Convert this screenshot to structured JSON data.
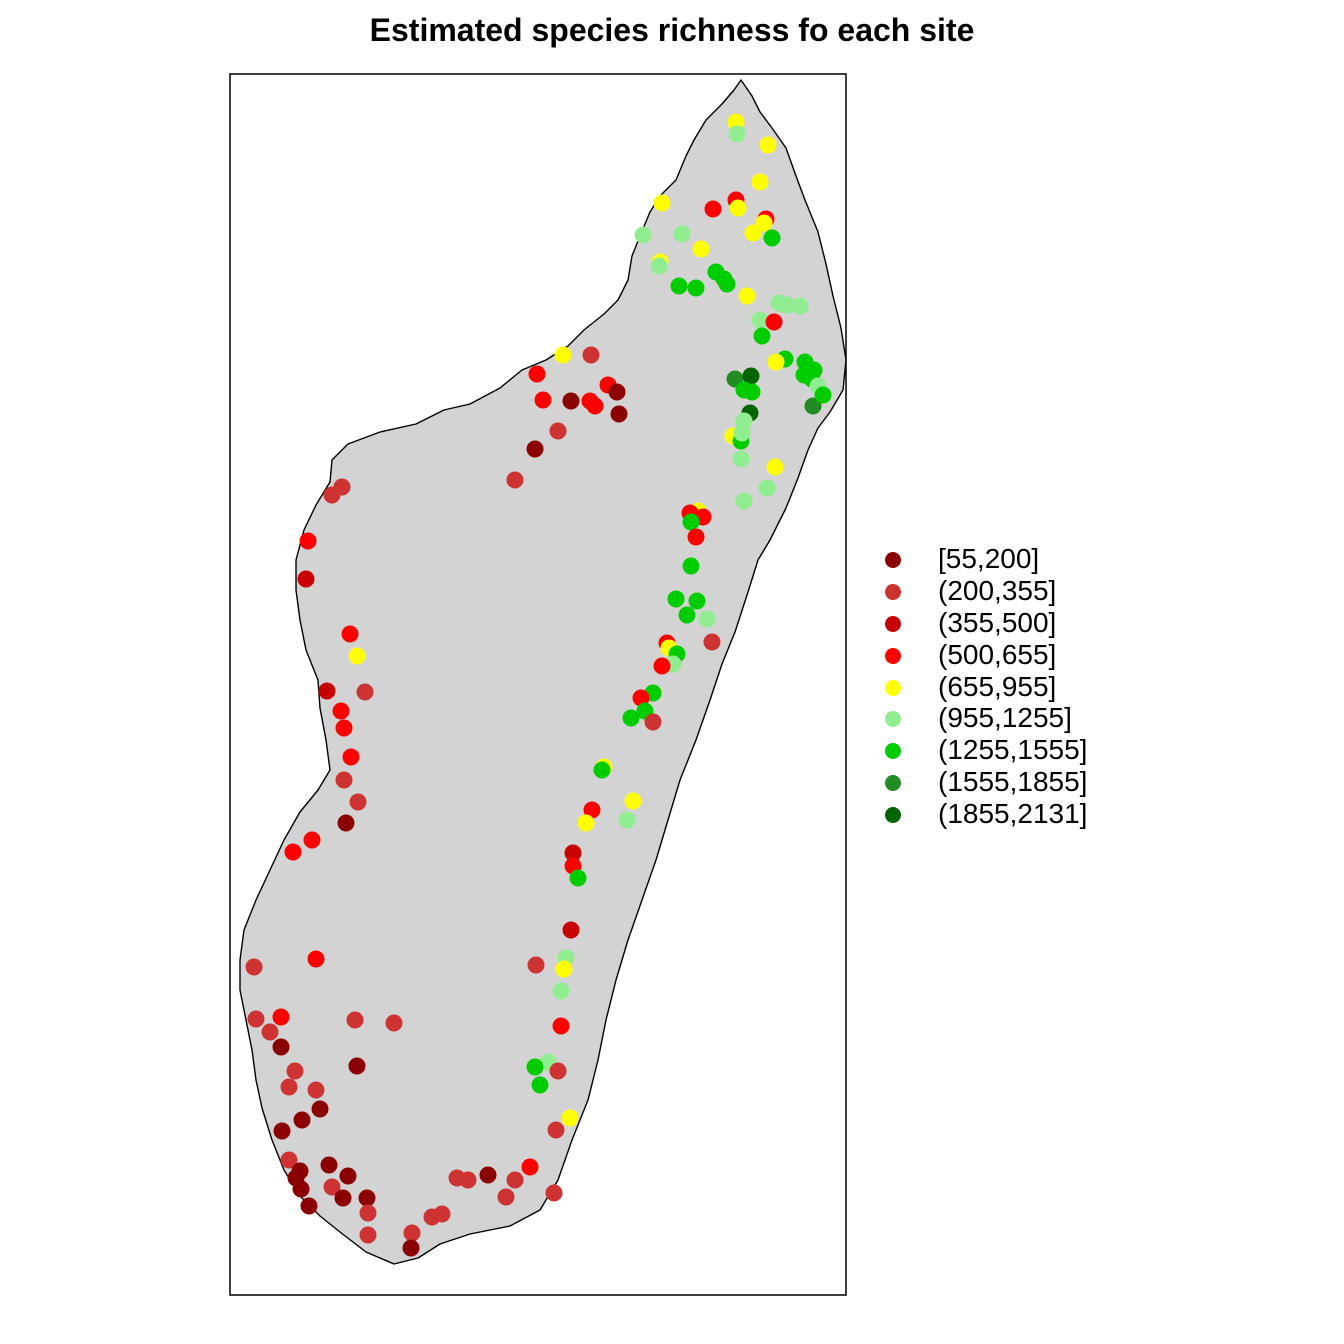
{
  "map": {
    "title": "Estimated species richness fo each site",
    "land_color": "#d3d3d3",
    "outline_color": "#000000",
    "bins": [
      {
        "label": "[55,200]",
        "color": "#8b0000"
      },
      {
        "label": "(200,355]",
        "color": "#cd3333"
      },
      {
        "label": "(355,500]",
        "color": "#c80000"
      },
      {
        "label": "(500,655]",
        "color": "#ff0000"
      },
      {
        "label": "(655,955]",
        "color": "#ffff00"
      },
      {
        "label": "(955,1255]",
        "color": "#90ee90"
      },
      {
        "label": "(1255,1555]",
        "color": "#00cd00"
      },
      {
        "label": "(1555,1855]",
        "color": "#228b22"
      },
      {
        "label": "(1855,2131]",
        "color": "#006400"
      }
    ]
  }
}
